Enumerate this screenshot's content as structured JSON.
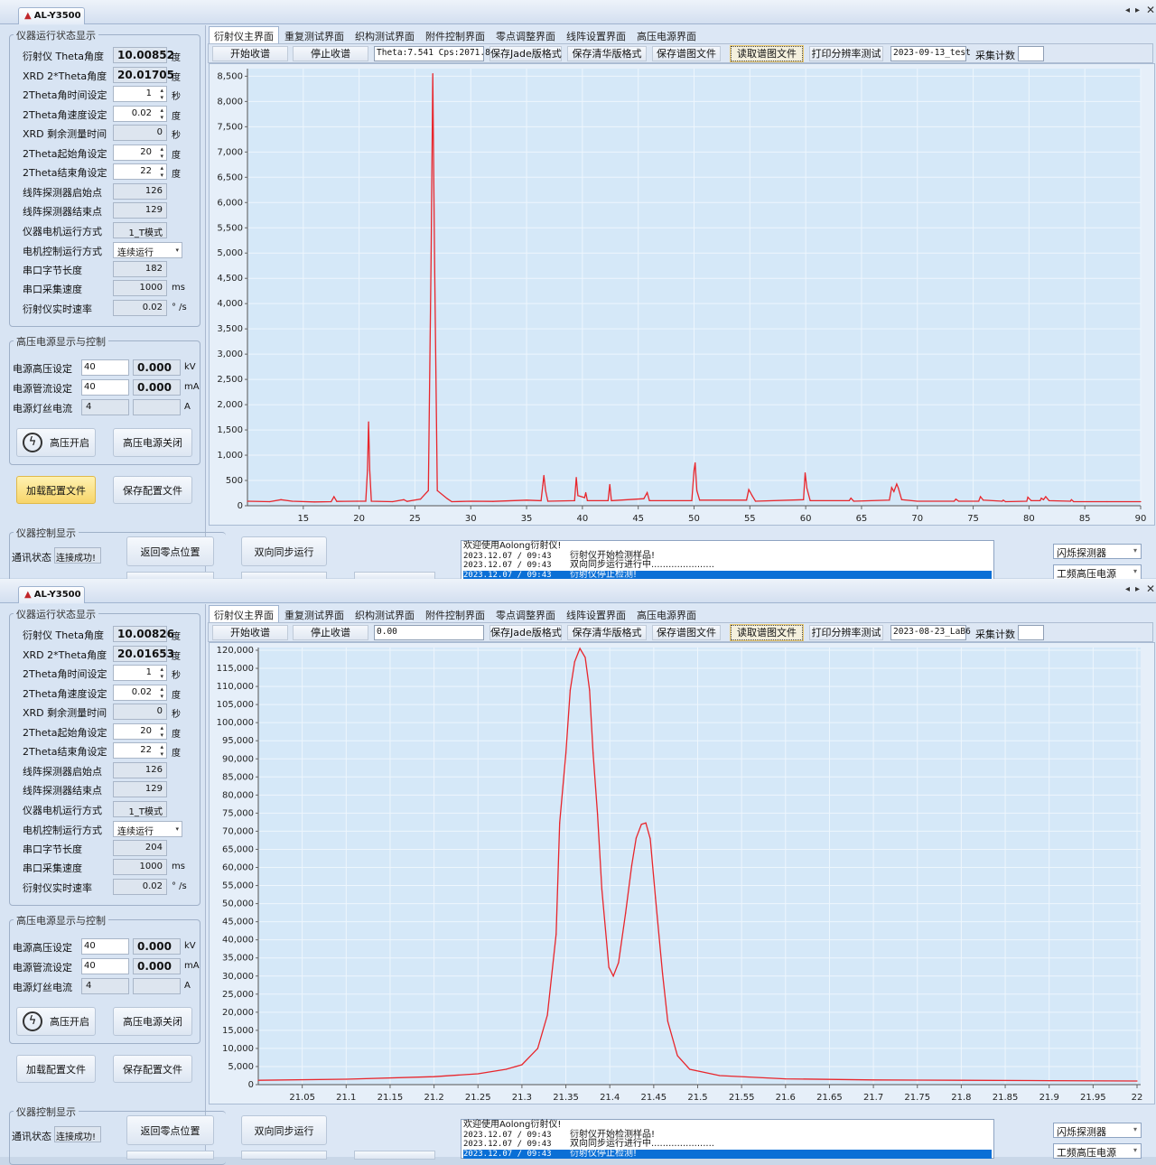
{
  "windows": [
    {
      "app_tab": "AL-Y3500",
      "status_panel": {
        "title": "仪器运行状态显示",
        "rows": [
          {
            "label": "衍射仪 Theta角度",
            "value": "10.00852",
            "unit": "度",
            "type": "bold"
          },
          {
            "label": "XRD  2*Theta角度",
            "value": "20.01705",
            "unit": "度",
            "type": "bold"
          },
          {
            "label": "2Theta角时间设定",
            "value": "1",
            "unit": "秒",
            "type": "spin"
          },
          {
            "label": "2Theta角速度设定",
            "value": "0.02",
            "unit": "度",
            "type": "spin"
          },
          {
            "label": "XRD 剩余测量时间",
            "value": "0",
            "unit": "秒",
            "type": "ro"
          },
          {
            "label": "2Theta起始角设定",
            "value": "20",
            "unit": "度",
            "type": "spin"
          },
          {
            "label": "2Theta结束角设定",
            "value": "22",
            "unit": "度",
            "type": "spin"
          },
          {
            "label": "线阵探测器启始点",
            "value": "126",
            "unit": "",
            "type": "ro"
          },
          {
            "label": "线阵探测器结束点",
            "value": "129",
            "unit": "",
            "type": "ro"
          },
          {
            "label": "仪器电机运行方式",
            "value": "1_T模式",
            "unit": "",
            "type": "ro"
          },
          {
            "label": "电机控制运行方式",
            "value": "连续运行",
            "unit": "",
            "type": "sel"
          },
          {
            "label": "串口字节长度",
            "value": "182",
            "unit": "",
            "type": "ro"
          },
          {
            "label": "串口采集速度",
            "value": "1000",
            "unit": "ms",
            "type": "ro"
          },
          {
            "label": "衍射仪实时速率",
            "value": "0.02",
            "unit": "° /s",
            "type": "ro"
          }
        ]
      },
      "hv": {
        "title": "高压电源显示与控制",
        "rows": [
          {
            "label": "电源高压设定",
            "input": "40",
            "readout": "0.000",
            "unit": "kV",
            "editable": true
          },
          {
            "label": "电源管流设定",
            "input": "40",
            "readout": "0.000",
            "unit": "mA",
            "editable": true
          },
          {
            "label": "电源灯丝电流",
            "input": "4",
            "readout": "",
            "unit": "A",
            "editable": false
          }
        ],
        "on_label": "高压开启",
        "off_label": "高压电源关闭"
      },
      "load_config": "加载配置文件",
      "load_active": true,
      "save_config": "保存配置文件",
      "control": {
        "title": "仪器控制显示",
        "comm_label": "通讯状态",
        "comm_value": "连接成功!",
        "home": "返回零点位置",
        "sync": "双向同步运行"
      },
      "tabs": [
        "衍射仪主界面",
        "重复测试界面",
        "织构测试界面",
        "附件控制界面",
        "零点调整界面",
        "线阵设置界面",
        "高压电源界面"
      ],
      "toolbar": {
        "start": "开始收谱",
        "stop": "停止收谱",
        "readout": "Theta:7.541 Cps:2071.8",
        "jade": "保存Jade版格式",
        "qinghua": "保存清华版格式",
        "save_file": "保存谱图文件",
        "read_file": "读取谱图文件",
        "print": "打印分辨率测试",
        "filename": "2023-09-13_test",
        "count_label": "采集计数",
        "count_value": ""
      },
      "log": {
        "header": "欢迎使用Aolong衍射仪!",
        "lines": [
          {
            "time": "2023.12.07 / 09:43",
            "msg": "衍射仪开始检测样品!"
          },
          {
            "time": "2023.12.07 / 09:43",
            "msg": "双向同步运行进行中......................"
          },
          {
            "time": "2023.12.07 / 09:43",
            "msg": "衍射仪停止检测!"
          }
        ]
      },
      "detector": "闪烁探测器",
      "power": "工频高压电源"
    },
    {
      "app_tab": "AL-Y3500",
      "status_panel": {
        "title": "仪器运行状态显示",
        "rows": [
          {
            "label": "衍射仪 Theta角度",
            "value": "10.00826",
            "unit": "度",
            "type": "bold"
          },
          {
            "label": "XRD  2*Theta角度",
            "value": "20.01653",
            "unit": "度",
            "type": "bold"
          },
          {
            "label": "2Theta角时间设定",
            "value": "1",
            "unit": "秒",
            "type": "spin"
          },
          {
            "label": "2Theta角速度设定",
            "value": "0.02",
            "unit": "度",
            "type": "spin"
          },
          {
            "label": "XRD 剩余测量时间",
            "value": "0",
            "unit": "秒",
            "type": "ro"
          },
          {
            "label": "2Theta起始角设定",
            "value": "20",
            "unit": "度",
            "type": "spin"
          },
          {
            "label": "2Theta结束角设定",
            "value": "22",
            "unit": "度",
            "type": "spin"
          },
          {
            "label": "线阵探测器启始点",
            "value": "126",
            "unit": "",
            "type": "ro"
          },
          {
            "label": "线阵探测器结束点",
            "value": "129",
            "unit": "",
            "type": "ro"
          },
          {
            "label": "仪器电机运行方式",
            "value": "1_T模式",
            "unit": "",
            "type": "ro"
          },
          {
            "label": "电机控制运行方式",
            "value": "连续运行",
            "unit": "",
            "type": "sel"
          },
          {
            "label": "串口字节长度",
            "value": "204",
            "unit": "",
            "type": "ro"
          },
          {
            "label": "串口采集速度",
            "value": "1000",
            "unit": "ms",
            "type": "ro"
          },
          {
            "label": "衍射仪实时速率",
            "value": "0.02",
            "unit": "° /s",
            "type": "ro"
          }
        ]
      },
      "hv": {
        "title": "高压电源显示与控制",
        "rows": [
          {
            "label": "电源高压设定",
            "input": "40",
            "readout": "0.000",
            "unit": "kV",
            "editable": true
          },
          {
            "label": "电源管流设定",
            "input": "40",
            "readout": "0.000",
            "unit": "mA",
            "editable": true
          },
          {
            "label": "电源灯丝电流",
            "input": "4",
            "readout": "",
            "unit": "A",
            "editable": false
          }
        ],
        "on_label": "高压开启",
        "off_label": "高压电源关闭"
      },
      "load_config": "加载配置文件",
      "load_active": false,
      "save_config": "保存配置文件",
      "control": {
        "title": "仪器控制显示",
        "comm_label": "通讯状态",
        "comm_value": "连接成功!",
        "home": "返回零点位置",
        "sync": "双向同步运行"
      },
      "tabs": [
        "衍射仪主界面",
        "重复测试界面",
        "织构测试界面",
        "附件控制界面",
        "零点调整界面",
        "线阵设置界面",
        "高压电源界面"
      ],
      "toolbar": {
        "start": "开始收谱",
        "stop": "停止收谱",
        "readout": "0.00",
        "jade": "保存Jade版格式",
        "qinghua": "保存清华版格式",
        "save_file": "保存谱图文件",
        "read_file": "读取谱图文件",
        "print": "打印分辨率测试",
        "filename": "2023-08-23_LaB6",
        "count_label": "采集计数",
        "count_value": ""
      },
      "log": {
        "header": "欢迎使用Aolong衍射仪!",
        "lines": [
          {
            "time": "2023.12.07 / 09:43",
            "msg": "衍射仪开始检测样品!"
          },
          {
            "time": "2023.12.07 / 09:43",
            "msg": "双向同步运行进行中......................"
          },
          {
            "time": "2023.12.07 / 09:43",
            "msg": "衍射仪停止检测!"
          }
        ]
      },
      "detector": "闪烁探测器",
      "power": "工频高压电源"
    }
  ],
  "chart_data": [
    {
      "type": "line",
      "xlim": [
        10,
        90
      ],
      "ylim": [
        0,
        8650
      ],
      "grid": true,
      "line_color": "#e8262c",
      "xtick_labels": [
        "15",
        "20",
        "25",
        "30",
        "35",
        "40",
        "45",
        "50",
        "55",
        "60",
        "65",
        "70",
        "75",
        "80",
        "85",
        "90"
      ],
      "xticks": [
        15,
        20,
        25,
        30,
        35,
        40,
        45,
        50,
        55,
        60,
        65,
        70,
        75,
        80,
        85,
        90
      ],
      "ytick_labels": [
        "0",
        "500",
        "1,000",
        "1,500",
        "2,000",
        "2,500",
        "3,000",
        "3,500",
        "4,000",
        "4,500",
        "5,000",
        "5,500",
        "6,000",
        "6,500",
        "7,000",
        "7,500",
        "8,000",
        "8,500"
      ],
      "yticks": [
        0,
        500,
        1000,
        1500,
        2000,
        2500,
        3000,
        3500,
        4000,
        4500,
        5000,
        5500,
        6000,
        6500,
        7000,
        7500,
        8000,
        8500
      ],
      "points": [
        [
          10,
          90
        ],
        [
          12,
          80
        ],
        [
          13,
          120
        ],
        [
          14,
          90
        ],
        [
          16,
          75
        ],
        [
          17.5,
          80
        ],
        [
          17.75,
          180
        ],
        [
          18,
          85
        ],
        [
          19.8,
          90
        ],
        [
          20.6,
          90
        ],
        [
          20.75,
          700
        ],
        [
          20.85,
          1660
        ],
        [
          20.95,
          700
        ],
        [
          21.1,
          90
        ],
        [
          23,
          80
        ],
        [
          24,
          120
        ],
        [
          24.3,
          85
        ],
        [
          25.5,
          130
        ],
        [
          26.2,
          300
        ],
        [
          26.45,
          5000
        ],
        [
          26.6,
          8550
        ],
        [
          26.75,
          5000
        ],
        [
          27,
          300
        ],
        [
          27.9,
          140
        ],
        [
          28.3,
          80
        ],
        [
          30,
          90
        ],
        [
          32,
          85
        ],
        [
          35,
          110
        ],
        [
          36.3,
          100
        ],
        [
          36.45,
          400
        ],
        [
          36.55,
          600
        ],
        [
          36.7,
          300
        ],
        [
          36.9,
          90
        ],
        [
          39.3,
          100
        ],
        [
          39.45,
          560
        ],
        [
          39.6,
          200
        ],
        [
          40.2,
          160
        ],
        [
          40.3,
          260
        ],
        [
          40.45,
          100
        ],
        [
          42.3,
          100
        ],
        [
          42.45,
          420
        ],
        [
          42.6,
          100
        ],
        [
          45.5,
          140
        ],
        [
          45.8,
          260
        ],
        [
          46,
          100
        ],
        [
          49.8,
          100
        ],
        [
          50,
          700
        ],
        [
          50.1,
          850
        ],
        [
          50.25,
          300
        ],
        [
          50.5,
          110
        ],
        [
          54.7,
          110
        ],
        [
          54.9,
          320
        ],
        [
          55.2,
          200
        ],
        [
          55.5,
          90
        ],
        [
          59.8,
          120
        ],
        [
          59.95,
          650
        ],
        [
          60.1,
          350
        ],
        [
          60.4,
          100
        ],
        [
          63.9,
          100
        ],
        [
          64.05,
          150
        ],
        [
          64.3,
          90
        ],
        [
          67.5,
          110
        ],
        [
          67.7,
          360
        ],
        [
          67.9,
          280
        ],
        [
          68.15,
          430
        ],
        [
          68.3,
          350
        ],
        [
          68.6,
          120
        ],
        [
          70,
          90
        ],
        [
          73.3,
          90
        ],
        [
          73.45,
          130
        ],
        [
          73.7,
          90
        ],
        [
          75.5,
          90
        ],
        [
          75.65,
          180
        ],
        [
          75.9,
          110
        ],
        [
          77.6,
          90
        ],
        [
          77.7,
          110
        ],
        [
          77.9,
          80
        ],
        [
          79.8,
          90
        ],
        [
          79.9,
          170
        ],
        [
          80.2,
          100
        ],
        [
          81,
          100
        ],
        [
          81.1,
          150
        ],
        [
          81.3,
          120
        ],
        [
          81.5,
          180
        ],
        [
          81.8,
          100
        ],
        [
          83.7,
          90
        ],
        [
          83.8,
          120
        ],
        [
          84,
          80
        ],
        [
          87,
          80
        ],
        [
          90,
          80
        ]
      ]
    },
    {
      "type": "line",
      "xlim": [
        21.0,
        22.0
      ],
      "ylim": [
        0,
        120750
      ],
      "grid": true,
      "line_color": "#e8262c",
      "xtick_labels": [
        "21.05",
        "21.1",
        "21.15",
        "21.2",
        "21.25",
        "21.3",
        "21.35",
        "21.4",
        "21.45",
        "21.5",
        "21.55",
        "21.6",
        "21.65",
        "21.7",
        "21.75",
        "21.8",
        "21.85",
        "21.9",
        "21.95",
        "22"
      ],
      "xticks": [
        21.05,
        21.1,
        21.15,
        21.2,
        21.25,
        21.3,
        21.35,
        21.4,
        21.45,
        21.5,
        21.55,
        21.6,
        21.65,
        21.7,
        21.75,
        21.8,
        21.85,
        21.9,
        21.95,
        22
      ],
      "ytick_labels": [
        "0",
        "5,000",
        "10,000",
        "15,000",
        "20,000",
        "25,000",
        "30,000",
        "35,000",
        "40,000",
        "45,000",
        "50,000",
        "55,000",
        "60,000",
        "65,000",
        "70,000",
        "75,000",
        "80,000",
        "85,000",
        "90,000",
        "95,000",
        "100,000",
        "105,000",
        "110,000",
        "115,000",
        "120,000"
      ],
      "yticks": [
        0,
        5000,
        10000,
        15000,
        20000,
        25000,
        30000,
        35000,
        40000,
        45000,
        50000,
        55000,
        60000,
        65000,
        70000,
        75000,
        80000,
        85000,
        90000,
        95000,
        100000,
        105000,
        110000,
        115000,
        120000
      ],
      "points": [
        [
          21.0,
          1200
        ],
        [
          21.1,
          1500
        ],
        [
          21.2,
          2200
        ],
        [
          21.25,
          3000
        ],
        [
          21.282,
          4240
        ],
        [
          21.3,
          5500
        ],
        [
          21.318,
          10000
        ],
        [
          21.329,
          19200
        ],
        [
          21.339,
          41600
        ],
        [
          21.343,
          72300
        ],
        [
          21.35,
          91600
        ],
        [
          21.355,
          109000
        ],
        [
          21.36,
          116800
        ],
        [
          21.366,
          120500
        ],
        [
          21.372,
          118000
        ],
        [
          21.377,
          109000
        ],
        [
          21.381,
          91600
        ],
        [
          21.386,
          74800
        ],
        [
          21.391,
          54000
        ],
        [
          21.399,
          32400
        ],
        [
          21.404,
          30000
        ],
        [
          21.41,
          33700
        ],
        [
          21.418,
          47400
        ],
        [
          21.425,
          60600
        ],
        [
          21.43,
          68100
        ],
        [
          21.436,
          71900
        ],
        [
          21.441,
          72300
        ],
        [
          21.446,
          67900
        ],
        [
          21.452,
          51600
        ],
        [
          21.46,
          30700
        ],
        [
          21.466,
          17500
        ],
        [
          21.477,
          8000
        ],
        [
          21.491,
          4240
        ],
        [
          21.525,
          2500
        ],
        [
          21.6,
          1600
        ],
        [
          21.7,
          1300
        ],
        [
          21.8,
          1200
        ],
        [
          21.9,
          1100
        ],
        [
          22.0,
          1000
        ]
      ]
    }
  ]
}
